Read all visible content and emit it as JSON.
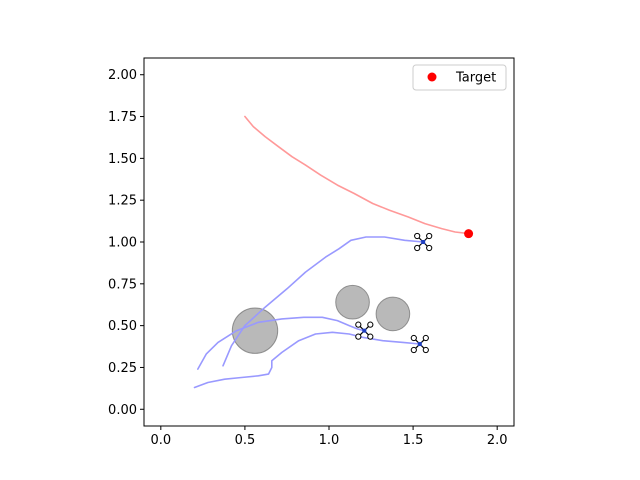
{
  "chart_data": {
    "type": "scatter",
    "xlim": [
      -0.1,
      2.1
    ],
    "ylim": [
      -0.1,
      2.1
    ],
    "x_ticks": [
      "0.0",
      "0.5",
      "1.0",
      "1.5",
      "2.0"
    ],
    "y_ticks": [
      "0.00",
      "0.25",
      "0.50",
      "0.75",
      "1.00",
      "1.25",
      "1.50",
      "1.75",
      "2.00"
    ],
    "grid": false,
    "legend_position": "top-right",
    "legend": [
      {
        "label": "Target",
        "color": "#ff0000",
        "marker": "circle"
      }
    ],
    "target": {
      "x": 1.83,
      "y": 1.05,
      "color": "#ff0000"
    },
    "obstacles": [
      {
        "x": 0.56,
        "y": 0.47,
        "r": 0.135
      },
      {
        "x": 1.14,
        "y": 0.64,
        "r": 0.1
      },
      {
        "x": 1.38,
        "y": 0.57,
        "r": 0.1
      }
    ],
    "obstacle_color": "#808080",
    "series": [
      {
        "color": "#ff9999",
        "points": [
          [
            0.5,
            1.75
          ],
          [
            0.55,
            1.69
          ],
          [
            0.62,
            1.63
          ],
          [
            0.7,
            1.57
          ],
          [
            0.78,
            1.51
          ],
          [
            0.86,
            1.46
          ],
          [
            0.95,
            1.4
          ],
          [
            1.05,
            1.34
          ],
          [
            1.15,
            1.29
          ],
          [
            1.26,
            1.23
          ],
          [
            1.36,
            1.19
          ],
          [
            1.47,
            1.15
          ],
          [
            1.57,
            1.11
          ],
          [
            1.67,
            1.08
          ],
          [
            1.75,
            1.06
          ],
          [
            1.83,
            1.05
          ]
        ]
      },
      {
        "color": "#9999ff",
        "points": [
          [
            0.37,
            0.26
          ],
          [
            0.42,
            0.38
          ],
          [
            0.5,
            0.5
          ],
          [
            0.62,
            0.61
          ],
          [
            0.75,
            0.72
          ],
          [
            0.86,
            0.82
          ],
          [
            0.98,
            0.91
          ],
          [
            1.06,
            0.96
          ],
          [
            1.13,
            1.01
          ],
          [
            1.22,
            1.03
          ],
          [
            1.33,
            1.03
          ],
          [
            1.45,
            1.01
          ],
          [
            1.56,
            1.0
          ]
        ]
      },
      {
        "color": "#9999ff",
        "points": [
          [
            0.22,
            0.24
          ],
          [
            0.27,
            0.33
          ],
          [
            0.34,
            0.4
          ],
          [
            0.45,
            0.47
          ],
          [
            0.58,
            0.52
          ],
          [
            0.72,
            0.54
          ],
          [
            0.85,
            0.55
          ],
          [
            0.96,
            0.55
          ],
          [
            1.05,
            0.53
          ],
          [
            1.12,
            0.5
          ],
          [
            1.17,
            0.48
          ],
          [
            1.21,
            0.47
          ]
        ]
      },
      {
        "color": "#9999ff",
        "points": [
          [
            0.2,
            0.13
          ],
          [
            0.28,
            0.16
          ],
          [
            0.38,
            0.18
          ],
          [
            0.48,
            0.19
          ],
          [
            0.58,
            0.2
          ],
          [
            0.64,
            0.21
          ],
          [
            0.66,
            0.25
          ],
          [
            0.66,
            0.29
          ],
          [
            0.72,
            0.34
          ],
          [
            0.82,
            0.41
          ],
          [
            0.92,
            0.45
          ],
          [
            1.02,
            0.46
          ],
          [
            1.12,
            0.45
          ],
          [
            1.2,
            0.43
          ],
          [
            1.32,
            0.41
          ],
          [
            1.44,
            0.4
          ],
          [
            1.54,
            0.39
          ]
        ]
      }
    ],
    "drones": [
      {
        "x": 1.56,
        "y": 1.0
      },
      {
        "x": 1.21,
        "y": 0.47
      },
      {
        "x": 1.54,
        "y": 0.39
      }
    ]
  }
}
